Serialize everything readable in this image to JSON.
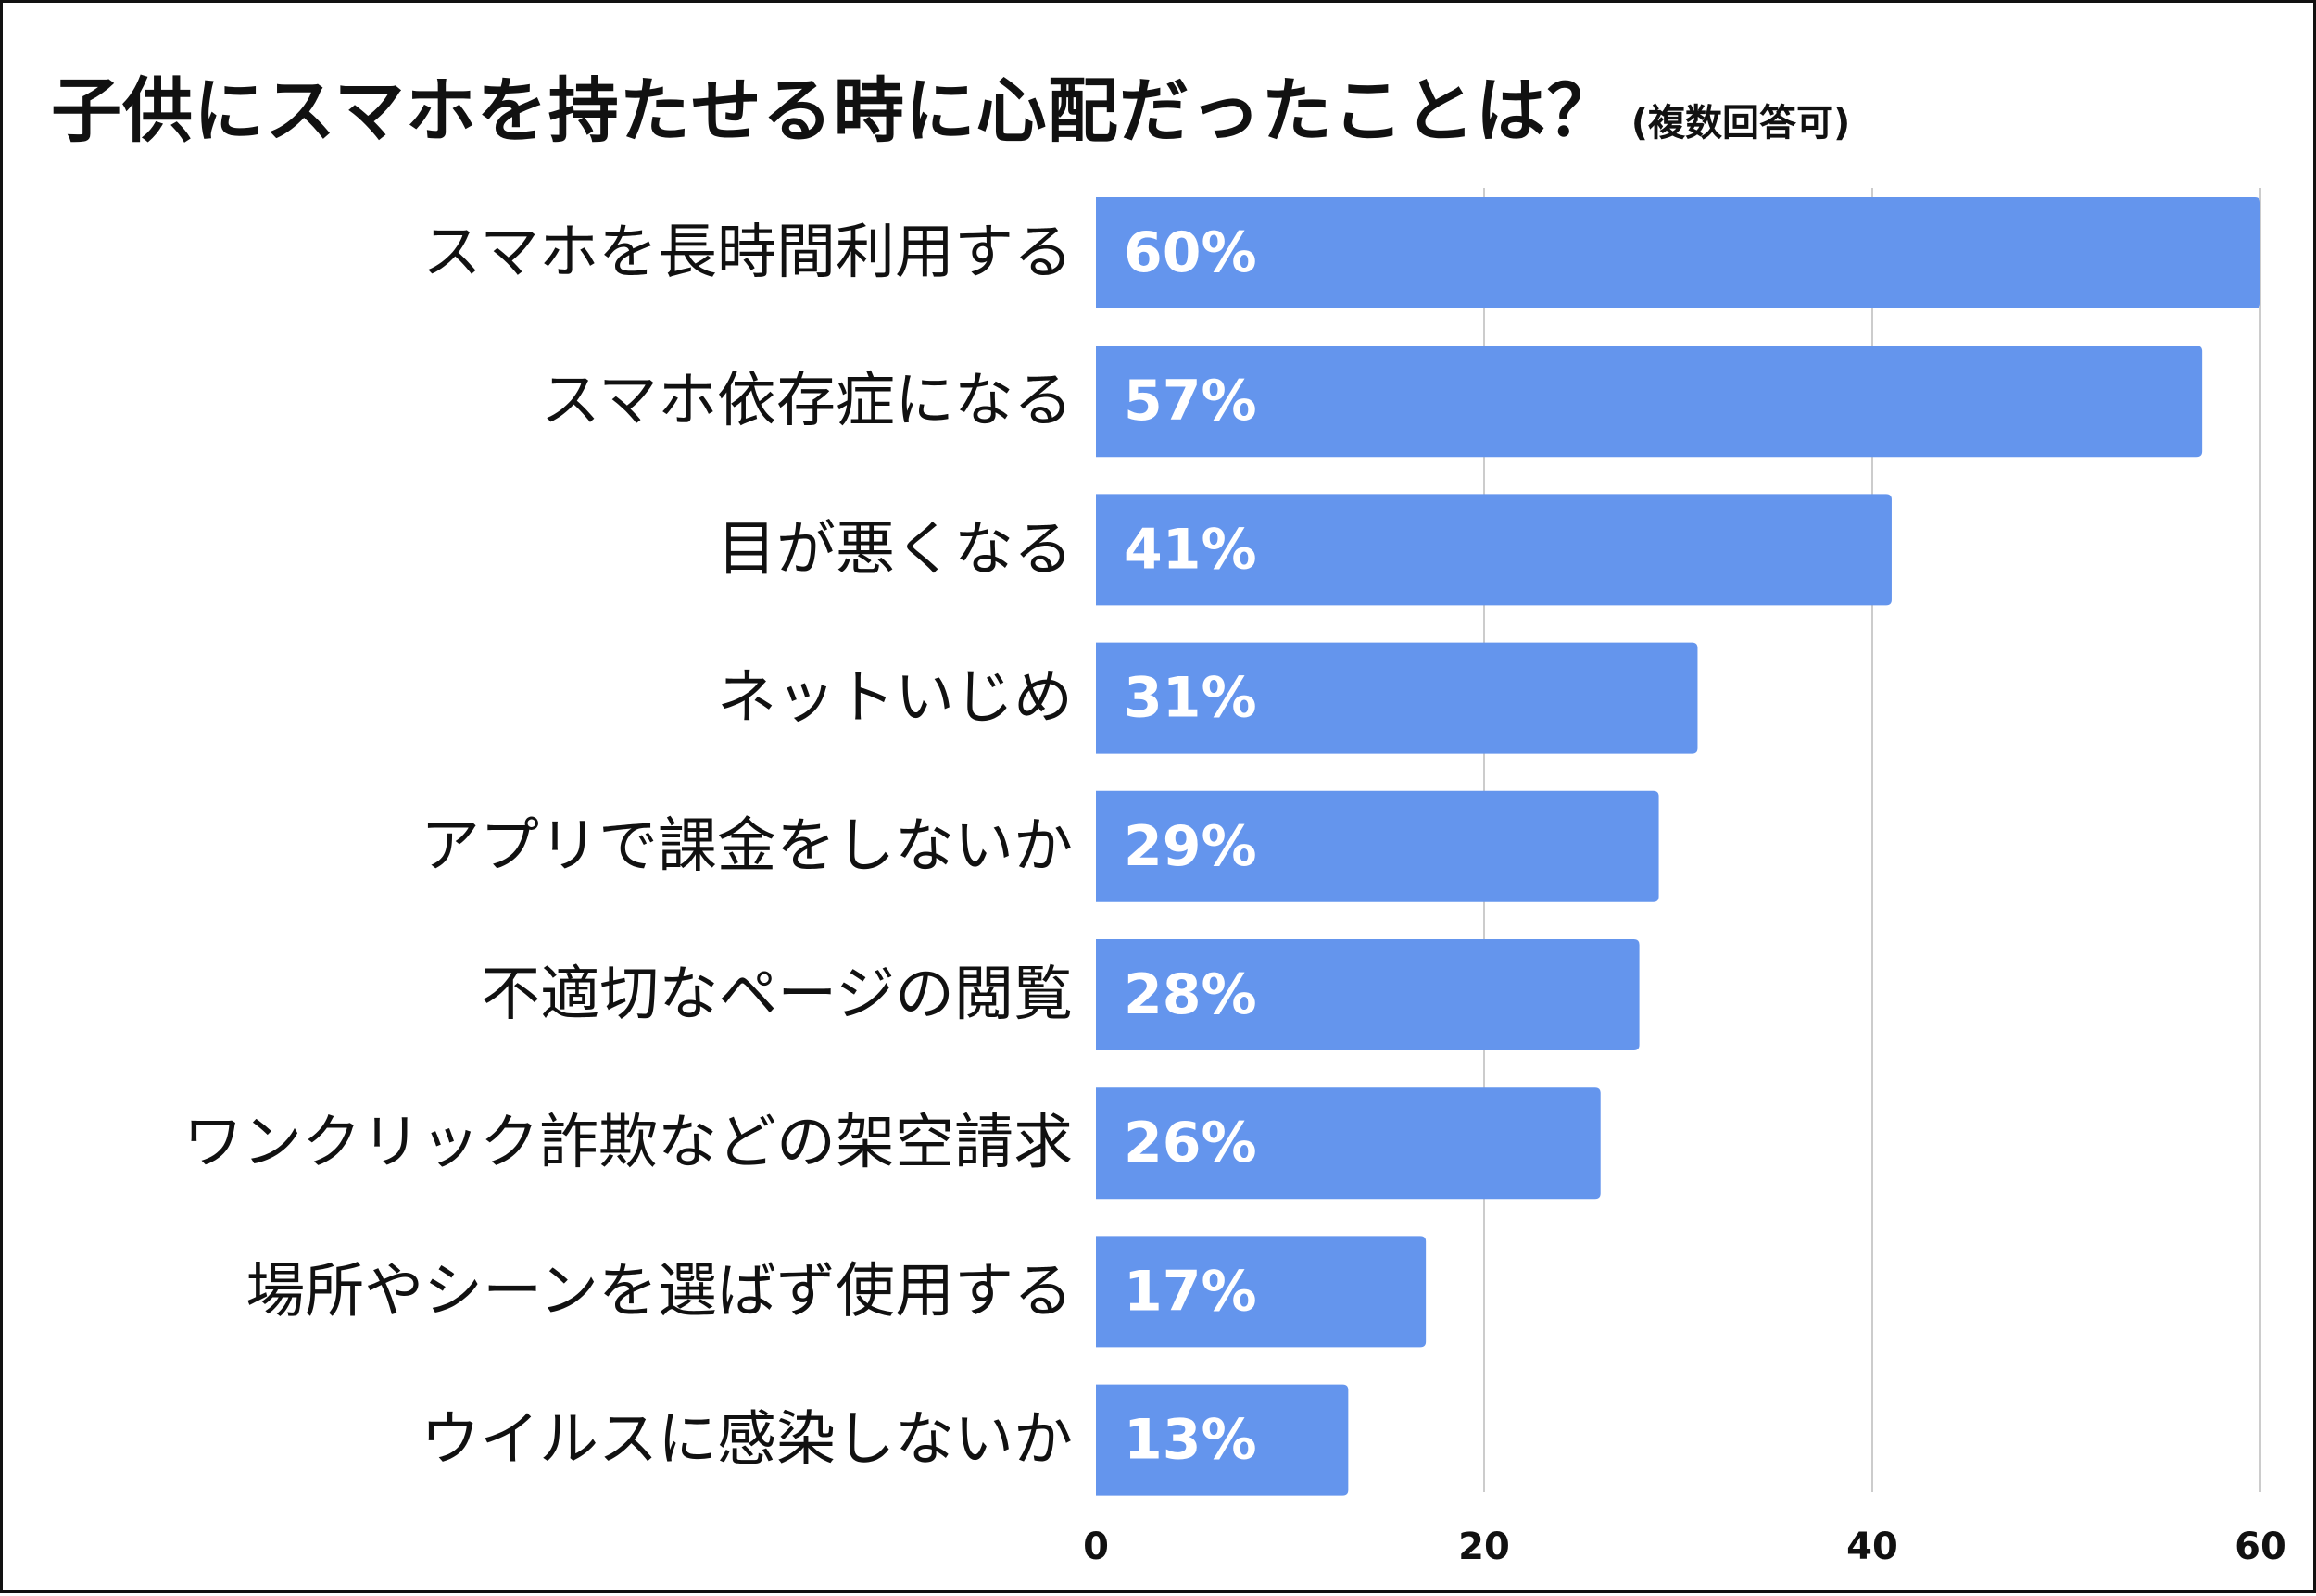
{
  "title": "子供にスマホを持たせる時に心配だったことは？",
  "subtitle": "(複数回答可)",
  "colors": {
    "bar": "#6495ED",
    "gridline": "#cccccc",
    "text": "#111111",
    "value_text": "#ffffff",
    "background": "#ffffff",
    "border": "#111111"
  },
  "chart_data": {
    "type": "bar",
    "orientation": "horizontal",
    "title": "子供にスマホを持たせる時に心配だったことは？",
    "subtitle": "(複数回答可)",
    "categories": [
      "スマホを長時間利用する",
      "スマホ依存症になる",
      "目が悪くなる",
      "ネットいじめ",
      "アプリで課金をしないか",
      "不適切なページの閲覧",
      "ワンクリック詐欺などの架空請求",
      "場所やシーンを選ばず使用する",
      "ウイルスに感染しないか"
    ],
    "values": [
      60,
      57,
      41,
      31,
      29,
      28,
      26,
      17,
      13
    ],
    "value_labels": [
      "60%",
      "57%",
      "41%",
      "31%",
      "29%",
      "28%",
      "26%",
      "17%",
      "13%"
    ],
    "xlim": [
      0,
      60
    ],
    "xticks": [
      0,
      20,
      40,
      60
    ],
    "xlabel": "",
    "ylabel": "",
    "grid": true,
    "legend": "none"
  }
}
